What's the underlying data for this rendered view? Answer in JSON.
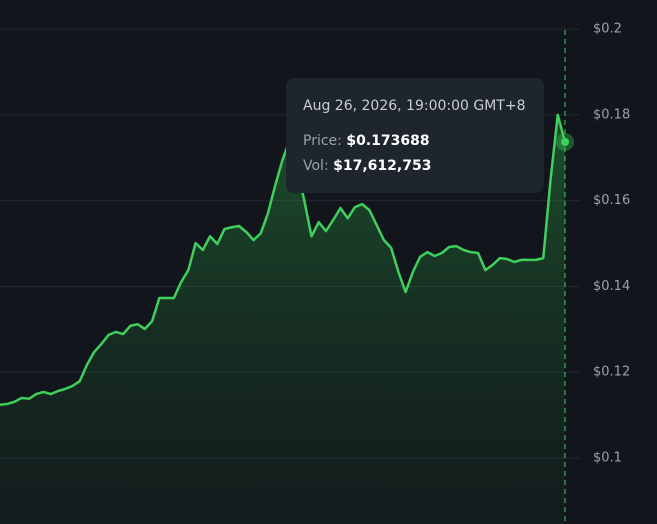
{
  "chart_data": {
    "type": "area",
    "color": "#3fcf5c",
    "values": [
      0.1124,
      0.1126,
      0.1131,
      0.114,
      0.1138,
      0.1149,
      0.1154,
      0.1149,
      0.1156,
      0.1161,
      0.1168,
      0.1179,
      0.1217,
      0.1247,
      0.1266,
      0.1287,
      0.1294,
      0.1289,
      0.1308,
      0.1312,
      0.1301,
      0.1319,
      0.1373,
      0.1373,
      0.1373,
      0.141,
      0.1438,
      0.1501,
      0.1485,
      0.1517,
      0.1499,
      0.1534,
      0.1538,
      0.1541,
      0.1527,
      0.1508,
      0.1524,
      0.1571,
      0.1636,
      0.1695,
      0.1741,
      0.1678,
      0.1601,
      0.1517,
      0.155,
      0.1529,
      0.1555,
      0.1583,
      0.1559,
      0.1585,
      0.1592,
      0.1578,
      0.1543,
      0.1508,
      0.149,
      0.1434,
      0.1387,
      0.1434,
      0.1469,
      0.148,
      0.1471,
      0.1478,
      0.1492,
      0.1494,
      0.1485,
      0.148,
      0.1478,
      0.1438,
      0.145,
      0.1466,
      0.1464,
      0.1457,
      0.1462,
      0.1462,
      0.1462,
      0.1466,
      0.1648,
      0.18,
      0.173688
    ],
    "ylim": [
      0.0846,
      0.2068
    ],
    "yticks": [
      {
        "value": 0.1,
        "label": "$0.1"
      },
      {
        "value": 0.12,
        "label": "$0.12"
      },
      {
        "value": 0.14,
        "label": "$0.14"
      },
      {
        "value": 0.16,
        "label": "$0.16"
      },
      {
        "value": 0.18,
        "label": "$0.18"
      },
      {
        "value": 0.2,
        "label": "$0.2"
      }
    ],
    "grid": true,
    "tooltip": {
      "date": "Aug 26, 2026, 19:00:00 GMT+8",
      "price_label": "Price:",
      "price": "$0.173688",
      "volume_label": "Vol:",
      "volume": "$17,612,753"
    }
  }
}
